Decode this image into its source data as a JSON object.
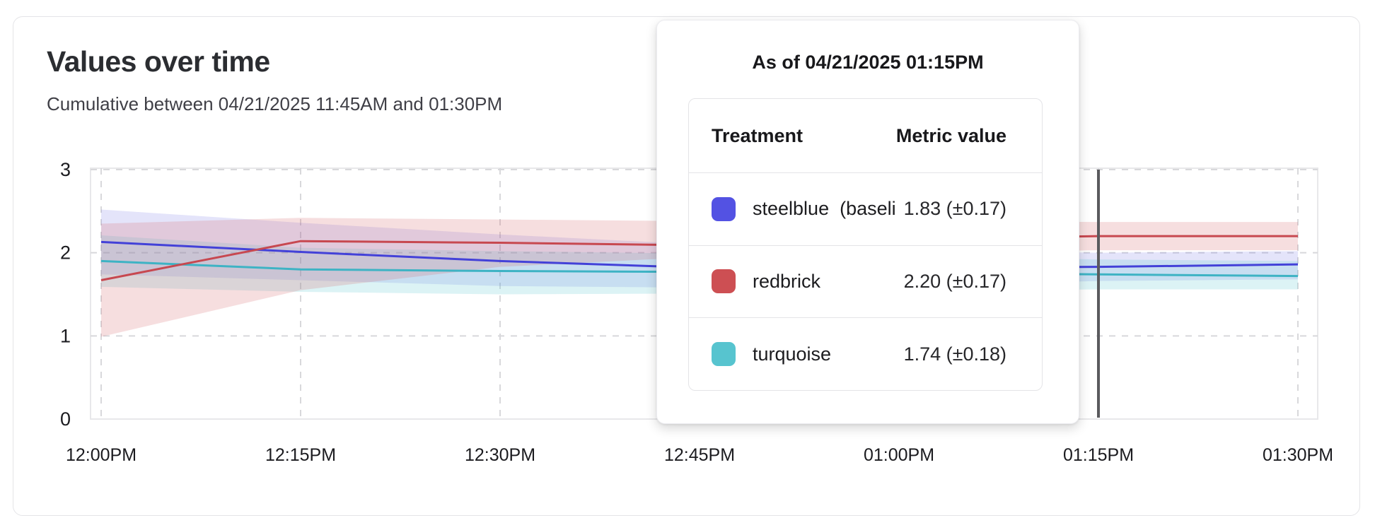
{
  "card": {
    "title": "Values over time",
    "subtitle": "Cumulative between 04/21/2025 11:45AM and 01:30PM"
  },
  "tooltip": {
    "header": "As of 04/21/2025 01:15PM",
    "columns": {
      "treatment": "Treatment",
      "metric": "Metric value"
    },
    "rows": [
      {
        "name": "steelblue  (baseli",
        "value": "1.83 (±0.17)",
        "color": "#5352e3"
      },
      {
        "name": "redbrick",
        "value": "2.20 (±0.17)",
        "color": "#cd4f53"
      },
      {
        "name": "turquoise",
        "value": "1.74 (±0.18)",
        "color": "#57c4cf"
      }
    ]
  },
  "chart_data": {
    "type": "line",
    "title": "Values over time",
    "x_labels": [
      "12:00PM",
      "12:15PM",
      "12:30PM",
      "12:45PM",
      "01:00PM",
      "01:15PM",
      "01:30PM"
    ],
    "y_ticks": [
      0,
      1,
      2,
      3
    ],
    "ylim": [
      0,
      3
    ],
    "grid": "dashed",
    "axis_text_color": "#1b1b1f",
    "gridline_color": "#d8d8db",
    "plot_border_color": "#e8e8ea",
    "crosshair": {
      "x_label": "01:15PM",
      "index": 5,
      "color": "#5a5a5e"
    },
    "series": [
      {
        "name": "steelblue (baseline)",
        "color": "#4341d8",
        "band_color": "rgba(88,86,226,0.16)",
        "values": [
          2.13,
          2.01,
          1.9,
          1.82,
          1.82,
          1.83,
          1.86
        ],
        "lo": [
          1.74,
          1.67,
          1.6,
          1.58,
          1.6,
          1.66,
          1.68
        ],
        "hi": [
          2.52,
          2.36,
          2.22,
          2.1,
          2.04,
          2.0,
          2.02
        ]
      },
      {
        "name": "turquoise",
        "color": "#3eb3c4",
        "band_color": "rgba(96,199,210,0.22)",
        "values": [
          1.9,
          1.8,
          1.78,
          1.77,
          1.76,
          1.74,
          1.72
        ],
        "lo": [
          1.59,
          1.53,
          1.5,
          1.51,
          1.53,
          1.56,
          1.56
        ],
        "hi": [
          2.21,
          2.06,
          2.02,
          1.99,
          1.96,
          1.92,
          1.9
        ]
      },
      {
        "name": "redbrick",
        "color": "#c74850",
        "band_color": "rgba(213,104,110,0.22)",
        "values": [
          1.67,
          2.14,
          2.12,
          2.09,
          2.16,
          2.2,
          2.2
        ],
        "lo": [
          0.99,
          1.55,
          1.83,
          1.95,
          2.0,
          2.03,
          2.03
        ],
        "hi": [
          2.35,
          2.42,
          2.4,
          2.38,
          2.38,
          2.37,
          2.37
        ]
      }
    ]
  }
}
